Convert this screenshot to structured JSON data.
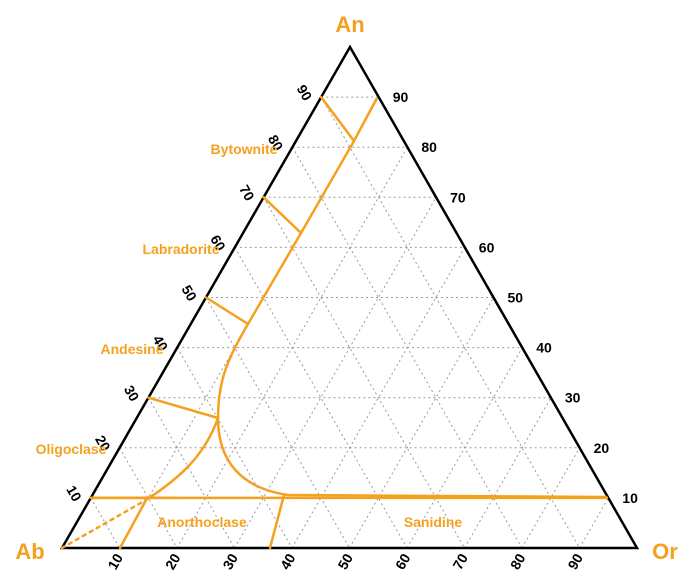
{
  "colors": {
    "accent": "#F5A01E",
    "frame": "#000000",
    "grid": "#9A9A9A"
  },
  "vertices": {
    "an": "An",
    "ab": "Ab",
    "or": "Or"
  },
  "ticks": {
    "an_values": [
      "10",
      "20",
      "30",
      "40",
      "50",
      "60",
      "70",
      "80",
      "90"
    ],
    "or_values": [
      "10",
      "20",
      "30",
      "40",
      "50",
      "60",
      "70",
      "80",
      "90"
    ],
    "right_values": [
      "90",
      "80",
      "70",
      "60",
      "50",
      "40",
      "30",
      "20",
      "10"
    ]
  },
  "fields": {
    "bytownite": "Bytownite",
    "labradorite": "Labradorite",
    "andesine": "Andesine",
    "oligoclase": "Oligoclase",
    "anorthoclase": "Anorthoclase",
    "sanidine": "Sanidine"
  }
}
